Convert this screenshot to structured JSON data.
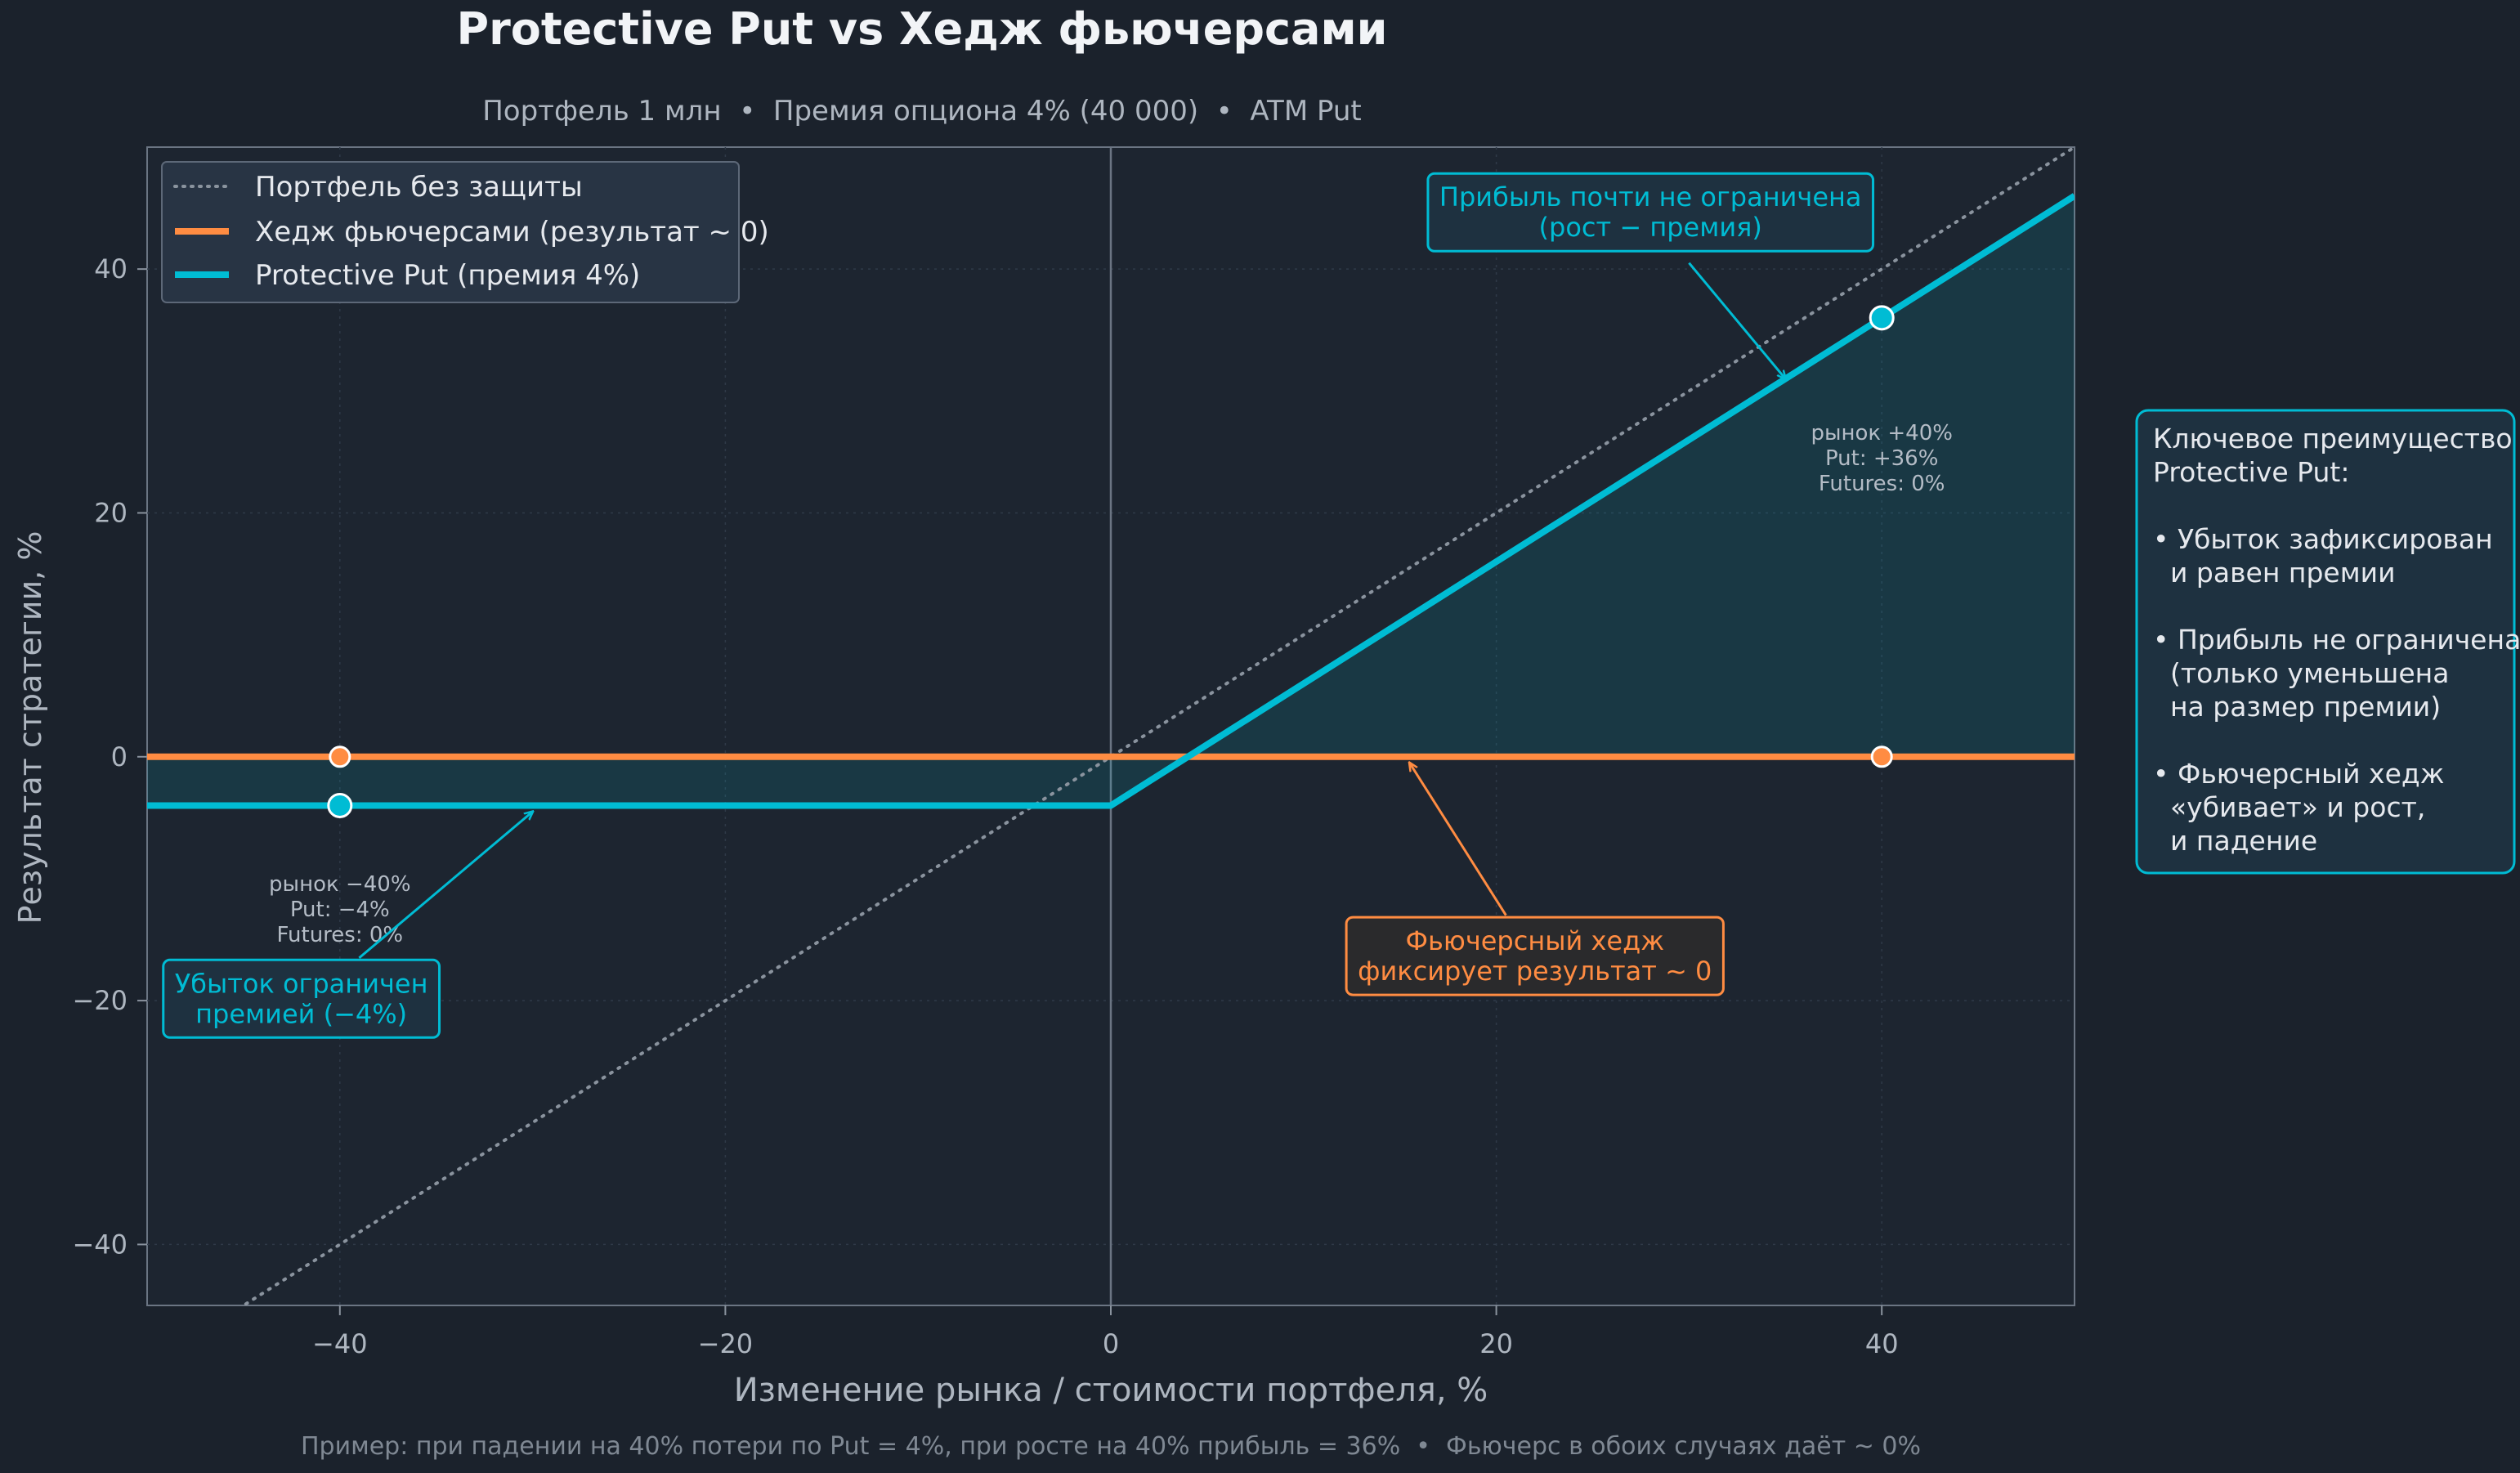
{
  "chart_data": {
    "type": "line",
    "title": "Protective Put vs Хедж фьючерсами",
    "subtitle": "Портфель 1 млн  •  Премия опциона 4% (40 000)  •  ATM Put",
    "xlabel": "Изменение рынка / стоимости портфеля, %",
    "ylabel": "Результат стратегии, %",
    "footnote": "Пример: при падении на 40% потери по Put = 4%, при росте на 40% прибыль = 36%  •  Фьючерс в обоих случаях даёт ~ 0%",
    "xlim": [
      -50,
      50
    ],
    "ylim": [
      -45,
      50
    ],
    "xticks": [
      -40,
      -20,
      0,
      20,
      40
    ],
    "yticks": [
      -40,
      -20,
      0,
      20,
      40
    ],
    "x_tick_labels": [
      "−40",
      "−20",
      "0",
      "20",
      "40"
    ],
    "y_tick_labels": [
      "−40",
      "−20",
      "0",
      "20",
      "40"
    ],
    "grid": true,
    "legend_position": "top-left",
    "colors": {
      "background": "#1b222c",
      "unprotected": "#8a939e",
      "futures": "#ff8c42",
      "put": "#00bcd4"
    },
    "series": [
      {
        "name": "Портфель без защиты",
        "style": "dotted",
        "color": "#8a939e",
        "x": [
          -50,
          50
        ],
        "y": [
          -50,
          50
        ]
      },
      {
        "name": "Хедж фьючерсами (результат ~ 0)",
        "style": "solid",
        "color": "#ff8c42",
        "x": [
          -50,
          50
        ],
        "y": [
          0,
          0
        ]
      },
      {
        "name": "Protective Put (премия 4%)",
        "style": "solid",
        "color": "#00bcd4",
        "x": [
          -50,
          0,
          50
        ],
        "y": [
          -4,
          -4,
          46
        ]
      }
    ],
    "markers": [
      {
        "x": -40,
        "y": 0,
        "color": "#ff8c42"
      },
      {
        "x": -40,
        "y": -4,
        "color": "#00bcd4"
      },
      {
        "x": 40,
        "y": 36,
        "color": "#00bcd4"
      },
      {
        "x": 40,
        "y": 0,
        "color": "#ff8c42"
      }
    ],
    "point_notes": [
      {
        "x": -40,
        "y": -11,
        "lines": [
          "рынок −40%",
          "Put: −4%",
          "Futures: 0%"
        ]
      },
      {
        "x": 40,
        "y": 26,
        "lines": [
          "рынок +40%",
          "Put: +36%",
          "Futures: 0%"
        ]
      }
    ],
    "annotations": [
      {
        "lines": [
          "Прибыль почти не ограничена",
          "(рост − премия)"
        ],
        "color": "#00bcd4",
        "text_x": 28,
        "text_y": 44.5,
        "arrow_from": [
          30,
          40.5
        ],
        "arrow_to": [
          35,
          31
        ]
      },
      {
        "lines": [
          "Убыток ограничен",
          "премией (−4%)"
        ],
        "color": "#00bcd4",
        "text_x": -42,
        "text_y": -20,
        "arrow_from": [
          -39,
          -16.5
        ],
        "arrow_to": [
          -30,
          -4.5
        ]
      },
      {
        "lines": [
          "Фьючерсный хедж",
          "фиксирует результат ~ 0"
        ],
        "color": "#ff8c42",
        "text_x": 22,
        "text_y": -16.5,
        "arrow_from": [
          20.5,
          -13
        ],
        "arrow_to": [
          15.5,
          -0.5
        ]
      }
    ],
    "side_note": {
      "lines": [
        "Ключевое преимущество",
        "Protective Put:",
        "",
        "• Убыток зафиксирован",
        "  и равен премии",
        "",
        "• Прибыль не ограничена",
        "  (только уменьшена",
        "  на размер премии)",
        "",
        "• Фьючерсный хедж",
        "  «убивает» и рост,",
        "  и падение"
      ]
    }
  }
}
